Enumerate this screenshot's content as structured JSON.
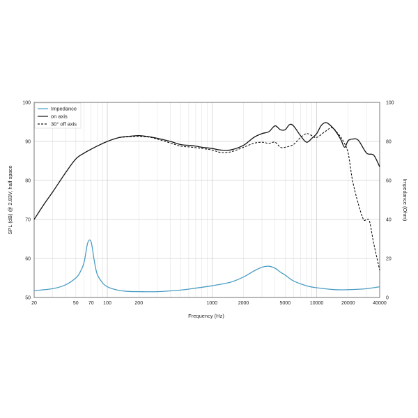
{
  "chart_data": {
    "type": "line",
    "xlabel": "Frequency (Hz)",
    "ylabel_left": "SPL (dB) @ 2.83V, half space",
    "ylabel_right": "Impedance (Ohm)",
    "x_scale": "log",
    "xlim": [
      20,
      40000
    ],
    "ylim_left": [
      50,
      100
    ],
    "ylim_right": [
      0,
      100
    ],
    "grid": true,
    "legend_position": "top-left",
    "x_ticks": [
      {
        "value": 20,
        "label": "20"
      },
      {
        "value": 50,
        "label": "50"
      },
      {
        "value": 70,
        "label": "70"
      },
      {
        "value": 100,
        "label": "100"
      },
      {
        "value": 200,
        "label": "200"
      },
      {
        "value": 1000,
        "label": "1000"
      },
      {
        "value": 2000,
        "label": "2000"
      },
      {
        "value": 5000,
        "label": "5000"
      },
      {
        "value": 10000,
        "label": "10000"
      },
      {
        "value": 20000,
        "label": "20000"
      },
      {
        "value": 40000,
        "label": "40000"
      }
    ],
    "y_ticks_left": [
      50,
      60,
      70,
      80,
      90,
      100
    ],
    "y_ticks_right": [
      0,
      20,
      40,
      60,
      80,
      100
    ],
    "series": [
      {
        "name": "Impedance",
        "axis": "right",
        "color": "#4a9cc4",
        "style": "solid",
        "x": [
          20,
          30,
          40,
          50,
          55,
          60,
          65,
          70,
          75,
          80,
          90,
          100,
          120,
          150,
          200,
          300,
          500,
          700,
          1000,
          1500,
          2000,
          2500,
          3000,
          3500,
          4000,
          4500,
          5000,
          6000,
          8000,
          10000,
          15000,
          20000,
          30000,
          40000
        ],
        "y": [
          3.5,
          4.5,
          6.5,
          10,
          13,
          18,
          28,
          28.5,
          19,
          12,
          7.5,
          5.5,
          4,
          3.2,
          3,
          3,
          3.8,
          4.8,
          6,
          7.8,
          10.5,
          13.5,
          15.5,
          16,
          15,
          13,
          11.5,
          8.5,
          6,
          5,
          4,
          4,
          4.5,
          5.5
        ]
      },
      {
        "name": "on axis",
        "axis": "left",
        "color": "#111111",
        "style": "solid",
        "x": [
          20,
          25,
          30,
          40,
          50,
          60,
          70,
          80,
          100,
          130,
          160,
          200,
          250,
          300,
          400,
          500,
          600,
          700,
          800,
          1000,
          1200,
          1500,
          2000,
          2500,
          3000,
          3500,
          4000,
          4500,
          5000,
          5500,
          6000,
          7000,
          8000,
          9000,
          10000,
          11000,
          12000,
          13000,
          15000,
          17000,
          18500,
          20000,
          22000,
          25000,
          30000,
          35000,
          40000
        ],
        "y": [
          70,
          74,
          77,
          82,
          85.5,
          87,
          88,
          88.8,
          90,
          91,
          91.3,
          91.5,
          91.2,
          90.8,
          90,
          89.2,
          89,
          88.8,
          88.5,
          88.2,
          87.8,
          87.8,
          89,
          91,
          92,
          92.5,
          94,
          93,
          93,
          94.3,
          94,
          91.5,
          89.8,
          90.8,
          92,
          94,
          94.8,
          94.5,
          92.8,
          90.5,
          88.5,
          90.2,
          90.6,
          90.3,
          87,
          86.5,
          83.5
        ]
      },
      {
        "name": "30° off axis",
        "axis": "left",
        "color": "#111111",
        "style": "dashed",
        "x": [
          130,
          160,
          200,
          250,
          300,
          400,
          500,
          600,
          700,
          800,
          1000,
          1200,
          1500,
          2000,
          2500,
          3000,
          3500,
          4000,
          4500,
          5000,
          6000,
          7000,
          8000,
          9000,
          10000,
          12000,
          14000,
          16000,
          18000,
          20000,
          22000,
          25000,
          28000,
          30000,
          32000,
          35000,
          40000
        ],
        "y": [
          91,
          91.2,
          91.3,
          91.1,
          90.6,
          89.6,
          88.8,
          88.6,
          88.4,
          88.2,
          87.8,
          87.2,
          87.3,
          88.5,
          89.5,
          89.8,
          89.5,
          89.8,
          88.5,
          88.5,
          89.2,
          91,
          92,
          91.5,
          91,
          92.5,
          93.5,
          92,
          90,
          87,
          80,
          74,
          70,
          70,
          69.5,
          64,
          57
        ]
      }
    ]
  }
}
